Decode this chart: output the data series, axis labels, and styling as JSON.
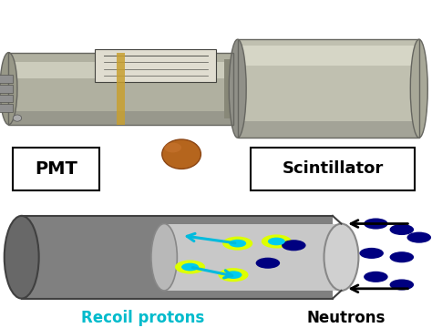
{
  "fig_width": 4.74,
  "fig_height": 3.6,
  "dpi": 100,
  "top_bg_color": "#c8c8a8",
  "pmt_label": "PMT",
  "scintillator_label": "Scintillator",
  "recoil_label": "Recoil protons",
  "neutrons_label": "Neutrons",
  "cylinder_outer_color": "#808080",
  "cylinder_inner_color": "#c8c8c8",
  "neutron_color": "#000080",
  "recoil_outer_color": "#ddff00",
  "recoil_inner_color": "#00ccee",
  "arrow_color": "#00bbdd",
  "label_box_color": "#ffffff",
  "label_text_color": "#000000",
  "recoil_text_color": "#00bbcc",
  "neutrons_text_color": "#000000",
  "pmt_body_color": "#b0b0a0",
  "pmt_highlight": "#d8d8c8",
  "scint_body_color": "#c0c0b0",
  "scint_highlight": "#e0e0d0",
  "metal_shadow": "#888880",
  "rubber_band": "#c8a030",
  "connector_color": "#909090",
  "coin_color": "#b5651d",
  "sticker_color": "#e0ddd0"
}
